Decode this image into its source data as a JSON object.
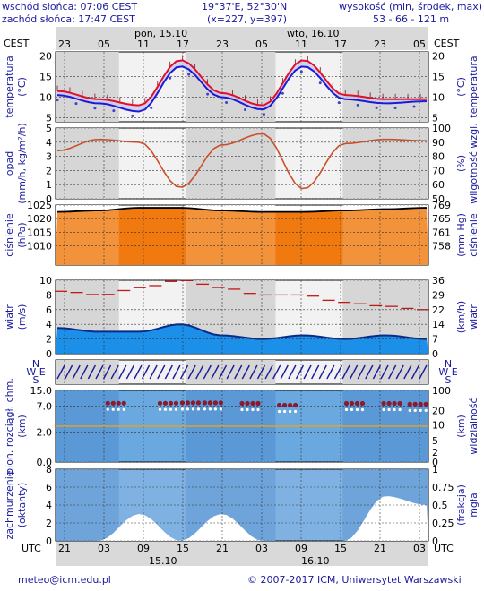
{
  "header": {
    "sunrise": "wschód słońca: 07:06 CEST",
    "sunset": "zachód słońca: 17:47 CEST",
    "coords": "19°37'E, 52°30'N",
    "grid": "(x=227, y=397)",
    "elev_label": "wysokość (min, środek, max)",
    "elev_values": "53 - 66 - 121 m"
  },
  "time": {
    "tz_top": "CEST",
    "tz_bottom": "UTC",
    "day1_top": "pon, 15.10",
    "day2_top": "wto, 16.10",
    "day1_bottom": "15.10",
    "day2_bottom": "16.10",
    "top_ticks": [
      "23",
      "05",
      "11",
      "17",
      "23",
      "05",
      "11",
      "17",
      "23",
      "05"
    ],
    "bottom_ticks": [
      "21",
      "03",
      "09",
      "15",
      "21",
      "03",
      "09",
      "15",
      "21",
      "03"
    ]
  },
  "panels": {
    "temp": {
      "left": "temperatura",
      "left2": "(°C)",
      "right": "(°C)",
      "right2": "temperatura"
    },
    "precip": {
      "left": "opad",
      "left2": "(mm/h, kg/m²/h)",
      "right": "(%)",
      "right2": "wilgotność wzgl."
    },
    "press": {
      "left": "ciśnienie",
      "left2": "(hPa)",
      "right": "(mm Hg)",
      "right2": "ciśnienie"
    },
    "wind": {
      "left": "wiatr",
      "left2": "(m/s)",
      "right": "(km/h)",
      "right2": "wiatr"
    },
    "winddir": {
      "left_ns": "N",
      "left_we": "W E",
      "left_s": "S",
      "right_ns": "N",
      "right_we": "W E",
      "right_s": "S"
    },
    "vis": {
      "left": "pion. rozciągł. chm.",
      "left2": "(km)",
      "right": "(km)",
      "right2": "widzialność"
    },
    "cloud": {
      "left": "zachmurzenie",
      "left2": "(oktanty)",
      "right": "(frakcja)",
      "right2": "mgła"
    }
  },
  "footer": {
    "email": "meteo@icm.edu.pl",
    "copyright": "© 2007-2017 ICM, Uniwersytet Warszawski"
  },
  "colors": {
    "grey_band": "#d6d6d6",
    "axis_blue": "#1a1a9e",
    "temp_red": "#e0102a",
    "temp_blue": "#1b1bd6",
    "humidity": "#c8502a",
    "pressure_fill": "#f07a10",
    "wind_fill": "#0c6fd0",
    "cloud_fill": "#7fb2e3",
    "vis_orange": "#e6a020"
  },
  "chart_data": [
    {
      "type": "line",
      "title": "temperatura",
      "xlabel": "CEST",
      "ylabel": "temperatura (°C)",
      "ylim": [
        4,
        21
      ],
      "yticks": [
        5,
        10,
        15,
        20
      ],
      "x": [
        "23",
        "05",
        "11",
        "17",
        "23",
        "05",
        "11",
        "17",
        "23",
        "05"
      ],
      "series": [
        {
          "values": [
            11.5,
            9.5,
            8,
            19,
            11,
            8,
            19,
            10.5,
            9.5,
            9.5
          ]
        },
        {
          "values": [
            10.5,
            8.5,
            6.5,
            17.5,
            10,
            7,
            17.5,
            9.5,
            8.5,
            9
          ]
        }
      ]
    },
    {
      "type": "line",
      "title": "opad / wilgotność",
      "ylabel": "opad (mm/h, kg/m²/h)",
      "y2label": "wilgotność wzgl. (%)",
      "ylim": [
        0,
        5
      ],
      "yticks": [
        0,
        1,
        2,
        3,
        4,
        5
      ],
      "y2lim": [
        50,
        100
      ],
      "y2ticks": [
        50,
        60,
        70,
        80,
        90,
        100
      ],
      "series": [
        {
          "values": [
            84,
            92,
            90,
            58,
            88,
            96,
            57,
            89,
            92,
            91
          ]
        }
      ]
    },
    {
      "type": "area",
      "title": "ciśnienie",
      "ylabel": "ciśnienie (hPa)",
      "y2label": "ciśnienie (mm Hg)",
      "ylim": [
        1003,
        1025
      ],
      "yticks": [
        1010,
        1015,
        1020,
        1025
      ],
      "y2ticks": [
        758,
        761,
        765,
        769
      ],
      "series": [
        {
          "values": [
            1022.5,
            1023,
            1024,
            1024,
            1023,
            1022.5,
            1022.5,
            1023,
            1023.5,
            1024
          ]
        }
      ]
    },
    {
      "type": "area",
      "title": "wiatr",
      "ylabel": "wiatr (m/s)",
      "y2label": "wiatr (km/h)",
      "ylim": [
        0,
        10
      ],
      "yticks": [
        0,
        2,
        4,
        6,
        8,
        10
      ],
      "y2ticks": [
        0,
        7,
        14,
        22,
        29,
        36
      ],
      "series": [
        {
          "values": [
            3.5,
            3,
            3,
            4,
            2.5,
            2,
            2.5,
            2,
            2.5,
            2
          ]
        },
        {
          "values": [
            8.5,
            8,
            9,
            10,
            9,
            8,
            8,
            7,
            6.5,
            6
          ]
        }
      ]
    },
    {
      "type": "scatter",
      "title": "widzialność",
      "ylabel": "pion. rozciągł. chm. (km)",
      "y2label": "widzialność (km)",
      "ylim": [
        0,
        15
      ],
      "yticks": [
        0.0,
        2.0,
        7.0,
        15.0
      ],
      "y2ticks": [
        0,
        2,
        5,
        10,
        20,
        100
      ],
      "series": [
        {
          "values": [
            8.5,
            8.5,
            8.7,
            8.7,
            7.5,
            8.4,
            8.4,
            8
          ]
        }
      ]
    },
    {
      "type": "area",
      "title": "zachmurzenie / mgła",
      "ylabel": "zachmurzenie (oktanty)",
      "y2label": "mgła (frakcja)",
      "ylim": [
        0,
        8
      ],
      "yticks": [
        0,
        2,
        4,
        6,
        8
      ],
      "y2lim": [
        0,
        1
      ],
      "y2ticks": [
        0,
        0.25,
        0.5,
        0.75,
        1
      ],
      "series": [
        {
          "values": [
            0,
            0,
            3,
            0,
            3,
            0,
            0,
            0,
            5,
            4
          ]
        }
      ]
    }
  ]
}
